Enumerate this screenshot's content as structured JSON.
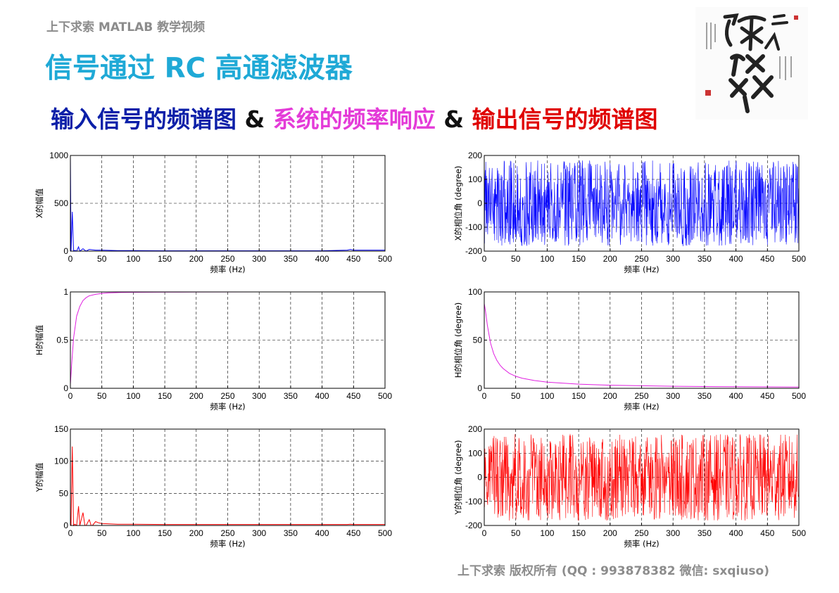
{
  "header": {
    "course_label": "上下求索 MATLAB 教学视频"
  },
  "title": "信号通过 RC 高通滤波器",
  "subtitle": {
    "part1": "输入信号的频谱图",
    "amp1": " & ",
    "part2": "系统的频率响应",
    "amp2": " & ",
    "part3": "输出信号的频谱图"
  },
  "footer": {
    "text": "上下求索  版权所有  (QQ : 993878382   微信: sxqiuso)"
  },
  "colors": {
    "blue": "#0000ff",
    "magenta": "#e020e0",
    "red": "#ff0000",
    "title": "#1fa9d6"
  },
  "chart_data": [
    {
      "id": "x-mag",
      "type": "line",
      "color": "#0000ff",
      "xlabel": "频率 (Hz)",
      "ylabel": "X的幅值",
      "xlim": [
        0,
        500
      ],
      "ylim": [
        0,
        1000
      ],
      "xticks": [
        0,
        50,
        100,
        150,
        200,
        250,
        300,
        350,
        400,
        450,
        500
      ],
      "yticks": [
        0,
        500,
        1000
      ],
      "grid": true,
      "x": [
        0,
        1,
        3,
        5,
        7,
        10,
        13,
        15,
        20,
        25,
        30,
        40,
        50,
        75,
        100,
        150,
        200,
        250,
        300,
        350,
        400,
        440,
        445,
        450,
        500
      ],
      "y": [
        1000,
        0,
        410,
        0,
        8,
        0,
        45,
        0,
        25,
        0,
        18,
        10,
        10,
        6,
        6,
        4,
        4,
        4,
        4,
        4,
        4,
        10,
        18,
        10,
        10
      ]
    },
    {
      "id": "x-phase",
      "type": "line",
      "color": "#0000ff",
      "xlabel": "频率 (Hz)",
      "ylabel": "X的相位角 (degree)",
      "xlim": [
        0,
        500
      ],
      "ylim": [
        -200,
        200
      ],
      "xticks": [
        0,
        50,
        100,
        150,
        200,
        250,
        300,
        350,
        400,
        450,
        500
      ],
      "yticks": [
        -200,
        -100,
        0,
        100,
        200
      ],
      "grid": true,
      "noise": {
        "min": -180,
        "max": 180,
        "points": 1000
      }
    },
    {
      "id": "h-mag",
      "type": "line",
      "color": "#e020e0",
      "xlabel": "频率 (Hz)",
      "ylabel": "H的幅值",
      "xlim": [
        0,
        500
      ],
      "ylim": [
        0,
        1
      ],
      "xticks": [
        0,
        50,
        100,
        150,
        200,
        250,
        300,
        350,
        400,
        450,
        500
      ],
      "yticks": [
        0,
        0.5,
        1
      ],
      "grid": true,
      "x": [
        0,
        2,
        5,
        10,
        15,
        20,
        25,
        30,
        40,
        50,
        60,
        80,
        100,
        150,
        200,
        300,
        400,
        500
      ],
      "y": [
        0.04,
        0.25,
        0.52,
        0.75,
        0.85,
        0.91,
        0.94,
        0.96,
        0.975,
        0.985,
        0.99,
        0.994,
        0.996,
        0.998,
        0.999,
        1.0,
        1.0,
        1.0
      ]
    },
    {
      "id": "h-phase",
      "type": "line",
      "color": "#e020e0",
      "xlabel": "频率 (Hz)",
      "ylabel": "H的相位角 (degree)",
      "xlim": [
        0,
        500
      ],
      "ylim": [
        0,
        100
      ],
      "xticks": [
        0,
        50,
        100,
        150,
        200,
        250,
        300,
        350,
        400,
        450,
        500
      ],
      "yticks": [
        0,
        50,
        100
      ],
      "grid": true,
      "x": [
        0,
        2,
        5,
        10,
        15,
        20,
        25,
        30,
        40,
        50,
        60,
        80,
        100,
        150,
        200,
        250,
        300,
        400,
        500
      ],
      "y": [
        88,
        80,
        65,
        47,
        36,
        29,
        24,
        20.5,
        15.5,
        12.5,
        10.5,
        8,
        6.4,
        4.3,
        3.2,
        2.6,
        2.1,
        1.6,
        1.3
      ]
    },
    {
      "id": "y-mag",
      "type": "line",
      "color": "#ff0000",
      "xlabel": "频率 (Hz)",
      "ylabel": "Y的幅值",
      "xlim": [
        0,
        500
      ],
      "ylim": [
        0,
        150
      ],
      "xticks": [
        0,
        50,
        100,
        150,
        200,
        250,
        300,
        350,
        400,
        450,
        500
      ],
      "yticks": [
        0,
        50,
        100,
        150
      ],
      "grid": true,
      "x": [
        0,
        1,
        3,
        5,
        7,
        10,
        13,
        15,
        20,
        23,
        25,
        30,
        33,
        35,
        40,
        45,
        50,
        75,
        100,
        150,
        200,
        250,
        300,
        350,
        400,
        440,
        445,
        450,
        500
      ],
      "y": [
        0,
        0,
        123,
        0,
        2,
        0,
        30,
        0,
        20,
        0,
        0,
        9,
        0,
        0,
        6,
        4,
        3,
        2,
        2,
        1.5,
        1.5,
        1.5,
        1.5,
        1.5,
        1.5,
        1.5,
        2,
        1.5,
        1.5
      ]
    },
    {
      "id": "y-phase",
      "type": "line",
      "color": "#ff0000",
      "xlabel": "频率 (Hz)",
      "ylabel": "Y的相位角 (degree)",
      "xlim": [
        0,
        500
      ],
      "ylim": [
        -200,
        200
      ],
      "xticks": [
        0,
        50,
        100,
        150,
        200,
        250,
        300,
        350,
        400,
        450,
        500
      ],
      "yticks": [
        -200,
        -100,
        0,
        100,
        200
      ],
      "grid": true,
      "noise": {
        "min": -180,
        "max": 180,
        "points": 1000
      }
    }
  ]
}
